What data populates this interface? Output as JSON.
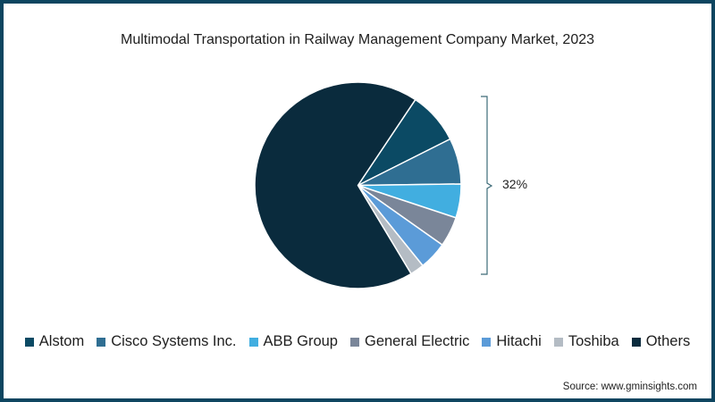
{
  "title": "Multimodal Transportation in Railway Management Company Market, 2023",
  "bracket_label": "32%",
  "source": "Source: www.gminsights.com",
  "legend": [
    {
      "label": "Alstom",
      "color": "#0b4a64"
    },
    {
      "label": "Cisco Systems Inc.",
      "color": "#2f6e92"
    },
    {
      "label": "ABB Group",
      "color": "#41aee0"
    },
    {
      "label": "General Electric",
      "color": "#7a8699"
    },
    {
      "label": "Hitachi",
      "color": "#5b9bd8"
    },
    {
      "label": "Toshiba",
      "color": "#b4bcc4"
    },
    {
      "label": "Others",
      "color": "#0a2b3d"
    }
  ],
  "chart_data": {
    "type": "pie",
    "title": "Multimodal Transportation in Railway Management Company Market, 2023",
    "values_note": "Only the aggregate 32% is labeled in the chart; per-company values are estimated from slice angles.",
    "categories": [
      "Alstom",
      "Cisco Systems Inc.",
      "ABB Group",
      "General Electric",
      "Hitachi",
      "Toshiba",
      "Others"
    ],
    "values": [
      8.2,
      7.2,
      5.3,
      4.7,
      4.4,
      2.2,
      68.0
    ],
    "colors": [
      "#0b4a64",
      "#2f6e92",
      "#41aee0",
      "#7a8699",
      "#5b9bd8",
      "#b4bcc4",
      "#0a2b3d"
    ],
    "start_angle_deg": 33.8,
    "direction": "clockwise",
    "annotations": [
      {
        "text": "32%",
        "spans": [
          "Alstom",
          "Cisco Systems Inc.",
          "ABB Group",
          "General Electric",
          "Hitachi",
          "Toshiba"
        ]
      }
    ],
    "legend_position": "bottom",
    "source": "www.gminsights.com"
  }
}
